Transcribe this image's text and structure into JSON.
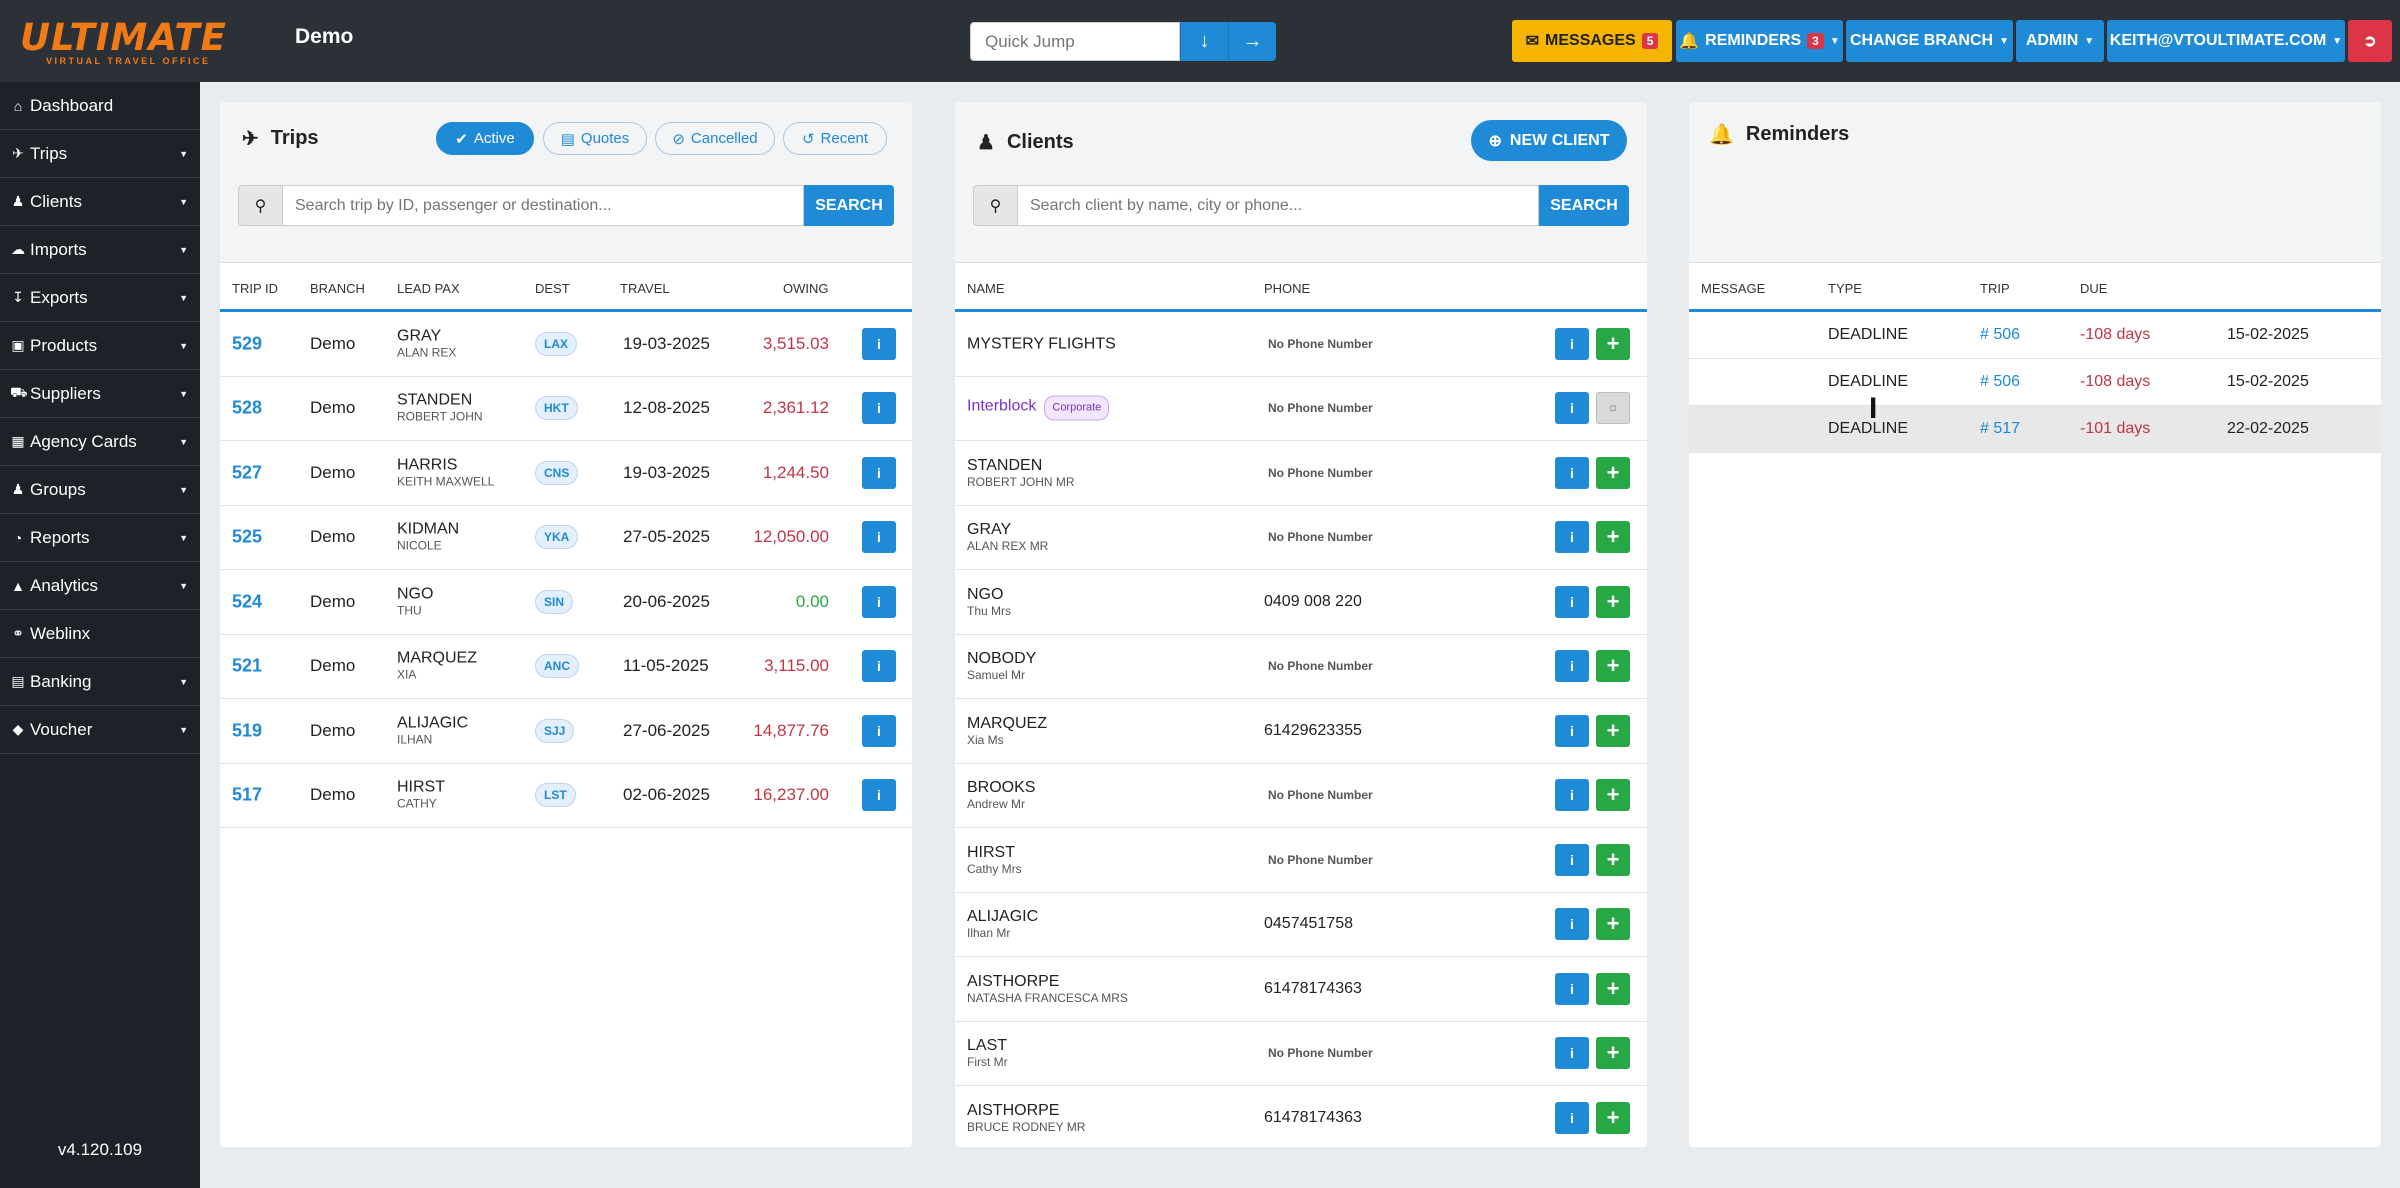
{
  "app": {
    "logo_text": "ULTIMATE",
    "logo_sub": "VIRTUAL TRAVEL OFFICE",
    "branch_name": "Demo",
    "version": "v4.120.109"
  },
  "topnav": {
    "quick_jump_placeholder": "Quick Jump",
    "messages_label": "MESSAGES",
    "messages_count": "5",
    "reminders_label": "REMINDERS",
    "reminders_count": "3",
    "change_branch_label": "CHANGE BRANCH",
    "admin_label": "ADMIN",
    "user_label": "KEITH@VTOULTIMATE.COM"
  },
  "sidebar": {
    "items": [
      {
        "label": "Dashboard"
      },
      {
        "label": "Trips"
      },
      {
        "label": "Clients"
      },
      {
        "label": "Imports"
      },
      {
        "label": "Exports"
      },
      {
        "label": "Products"
      },
      {
        "label": "Suppliers"
      },
      {
        "label": "Agency Cards"
      },
      {
        "label": "Groups"
      },
      {
        "label": "Reports"
      },
      {
        "label": "Analytics"
      },
      {
        "label": "Weblinx"
      },
      {
        "label": "Banking"
      },
      {
        "label": "Voucher"
      }
    ]
  },
  "trips": {
    "title": "Trips",
    "filters": {
      "active": "Active",
      "quotes": "Quotes",
      "cancelled": "Cancelled",
      "recent": "Recent"
    },
    "search_placeholder": "Search trip by ID, passenger or destination...",
    "search_label": "SEARCH",
    "columns": {
      "trip_id": "TRIP ID",
      "branch": "BRANCH",
      "lead_pax": "LEAD PAX",
      "dest": "DEST",
      "travel": "TRAVEL",
      "owing": "OWING"
    },
    "rows": [
      {
        "id": "529",
        "branch": "Demo",
        "surname": "GRAY",
        "given": "ALAN REX",
        "dest": "LAX",
        "travel": "19-03-2025",
        "owing": "3,515.03"
      },
      {
        "id": "528",
        "branch": "Demo",
        "surname": "STANDEN",
        "given": "ROBERT JOHN",
        "dest": "HKT",
        "travel": "12-08-2025",
        "owing": "2,361.12"
      },
      {
        "id": "527",
        "branch": "Demo",
        "surname": "HARRIS",
        "given": "KEITH MAXWELL",
        "dest": "CNS",
        "travel": "19-03-2025",
        "owing": "1,244.50"
      },
      {
        "id": "525",
        "branch": "Demo",
        "surname": "KIDMAN",
        "given": "NICOLE",
        "dest": "YKA",
        "travel": "27-05-2025",
        "owing": "12,050.00"
      },
      {
        "id": "524",
        "branch": "Demo",
        "surname": "NGO",
        "given": "THU",
        "dest": "SIN",
        "travel": "20-06-2025",
        "owing": "0.00"
      },
      {
        "id": "521",
        "branch": "Demo",
        "surname": "MARQUEZ",
        "given": "XIA",
        "dest": "ANC",
        "travel": "11-05-2025",
        "owing": "3,115.00"
      },
      {
        "id": "519",
        "branch": "Demo",
        "surname": "ALIJAGIC",
        "given": "ILHAN",
        "dest": "SJJ",
        "travel": "27-06-2025",
        "owing": "14,877.76"
      },
      {
        "id": "517",
        "branch": "Demo",
        "surname": "HIRST",
        "given": "CATHY",
        "dest": "LST",
        "travel": "02-06-2025",
        "owing": "16,237.00"
      }
    ]
  },
  "clients": {
    "title": "Clients",
    "new_client_label": "NEW CLIENT",
    "search_placeholder": "Search client by name, city or phone...",
    "search_label": "SEARCH",
    "columns": {
      "name": "NAME",
      "phone": "PHONE"
    },
    "rows": [
      {
        "name": "MYSTERY FLIGHTS",
        "sub": "",
        "phone": "No Phone Number",
        "corporate": false
      },
      {
        "name": "Interblock",
        "sub": "",
        "phone": "No Phone Number",
        "corporate": true,
        "badge": "Corporate"
      },
      {
        "name": "STANDEN",
        "sub": "ROBERT JOHN MR",
        "phone": "No Phone Number",
        "corporate": false
      },
      {
        "name": "GRAY",
        "sub": "ALAN REX MR",
        "phone": "No Phone Number",
        "corporate": false
      },
      {
        "name": "NGO",
        "sub": "Thu Mrs",
        "phone": "0409 008 220",
        "corporate": false
      },
      {
        "name": "NOBODY",
        "sub": "Samuel Mr",
        "phone": "No Phone Number",
        "corporate": false
      },
      {
        "name": "MARQUEZ",
        "sub": "Xia Ms",
        "phone": "61429623355",
        "corporate": false
      },
      {
        "name": "BROOKS",
        "sub": "Andrew Mr",
        "phone": "No Phone Number",
        "corporate": false
      },
      {
        "name": "HIRST",
        "sub": "Cathy Mrs",
        "phone": "No Phone Number",
        "corporate": false
      },
      {
        "name": "ALIJAGIC",
        "sub": "Ilhan Mr",
        "phone": "0457451758",
        "corporate": false
      },
      {
        "name": "AISTHORPE",
        "sub": "NATASHA FRANCESCA MRS",
        "phone": "61478174363",
        "corporate": false
      },
      {
        "name": "LAST",
        "sub": "First Mr",
        "phone": "No Phone Number",
        "corporate": false
      },
      {
        "name": "AISTHORPE",
        "sub": "BRUCE RODNEY MR",
        "phone": "61478174363",
        "corporate": false
      }
    ]
  },
  "reminders": {
    "title": "Reminders",
    "columns": {
      "message": "MESSAGE",
      "type": "TYPE",
      "trip": "TRIP",
      "due": "DUE"
    },
    "rows": [
      {
        "message": "",
        "type": "DEADLINE",
        "trip": "# 506",
        "due": "-108 days",
        "date": "15-02-2025"
      },
      {
        "message": "",
        "type": "DEADLINE",
        "trip": "# 506",
        "due": "-108 days",
        "date": "15-02-2025"
      },
      {
        "message": "",
        "type": "DEADLINE",
        "trip": "# 517",
        "due": "-101 days",
        "date": "22-02-2025"
      }
    ]
  },
  "colors": {
    "accent": "#1f8ad6",
    "brand": "#f07b16",
    "danger": "#c03545",
    "success": "#28a745",
    "sidebar": "#1d2128"
  }
}
